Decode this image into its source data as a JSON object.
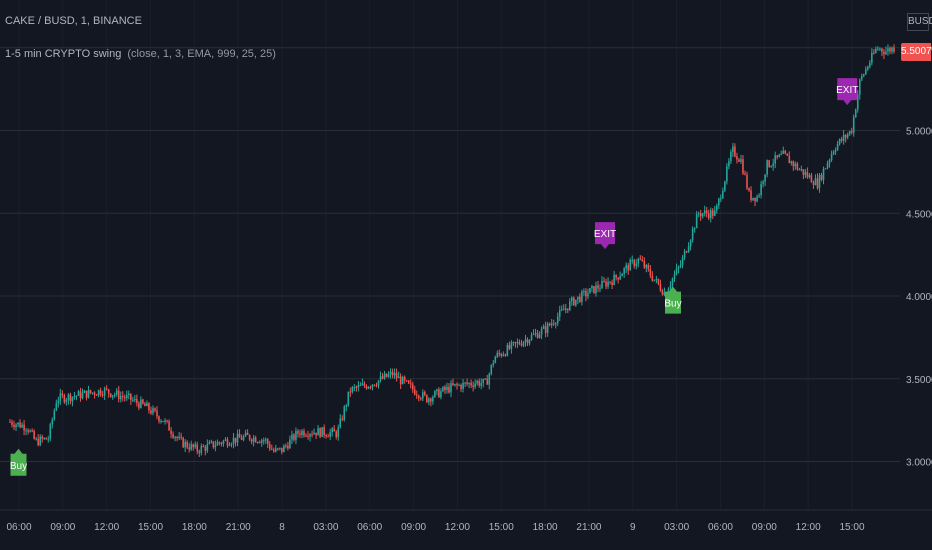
{
  "header": {
    "symbol": "CAKE / BUSD, 1, BINANCE",
    "indicator": "1-5 min CRYPTO swing",
    "indicator_params": "(close, 1, 3, EMA, 999, 25, 25)"
  },
  "currency": "BUSD",
  "last_price": "5.5007",
  "colors": {
    "background": "#131722",
    "grid": "#2a2e39",
    "up": "#26a69a",
    "down": "#ef5350",
    "axis_text": "#b2b5be",
    "buy": "#4caf50",
    "exit": "#9c27b0",
    "badge": "#f05350"
  },
  "chart_data": {
    "type": "candlestick",
    "title": "CAKE / BUSD, 1, BINANCE",
    "ylim": [
      2.75,
      5.75
    ],
    "y_ticks": [
      "3.0000",
      "3.5000",
      "4.0000",
      "4.5000",
      "5.0000",
      "5.5000"
    ],
    "x_ticks": [
      "06:00",
      "09:00",
      "12:00",
      "15:00",
      "18:00",
      "21:00",
      "8",
      "03:00",
      "06:00",
      "09:00",
      "12:00",
      "15:00",
      "18:00",
      "21:00",
      "9",
      "03:00",
      "06:00",
      "09:00",
      "12:00",
      "15:00"
    ],
    "price_path": [
      [
        0,
        3.24
      ],
      [
        0.02,
        3.21
      ],
      [
        0.03,
        3.12
      ],
      [
        0.045,
        3.14
      ],
      [
        0.055,
        3.38
      ],
      [
        0.08,
        3.4
      ],
      [
        0.11,
        3.43
      ],
      [
        0.14,
        3.38
      ],
      [
        0.16,
        3.33
      ],
      [
        0.18,
        3.25
      ],
      [
        0.2,
        3.12
      ],
      [
        0.22,
        3.07
      ],
      [
        0.25,
        3.12
      ],
      [
        0.28,
        3.15
      ],
      [
        0.3,
        3.13
      ],
      [
        0.31,
        3.06
      ],
      [
        0.32,
        3.07
      ],
      [
        0.34,
        3.18
      ],
      [
        0.36,
        3.18
      ],
      [
        0.385,
        3.17
      ],
      [
        0.4,
        3.43
      ],
      [
        0.43,
        3.48
      ],
      [
        0.45,
        3.53
      ],
      [
        0.47,
        3.45
      ],
      [
        0.49,
        3.38
      ],
      [
        0.52,
        3.45
      ],
      [
        0.55,
        3.48
      ],
      [
        0.56,
        3.47
      ],
      [
        0.57,
        3.63
      ],
      [
        0.6,
        3.72
      ],
      [
        0.63,
        3.8
      ],
      [
        0.66,
        3.96
      ],
      [
        0.69,
        4.05
      ],
      [
        0.71,
        4.1
      ],
      [
        0.73,
        4.19
      ],
      [
        0.74,
        4.22
      ],
      [
        0.755,
        4.12
      ],
      [
        0.77,
        4.02
      ],
      [
        0.79,
        4.2
      ],
      [
        0.81,
        4.5
      ],
      [
        0.83,
        4.5
      ],
      [
        0.85,
        4.88
      ],
      [
        0.86,
        4.82
      ],
      [
        0.87,
        4.6
      ],
      [
        0.88,
        4.6
      ],
      [
        0.89,
        4.79
      ],
      [
        0.91,
        4.85
      ],
      [
        0.93,
        4.76
      ],
      [
        0.95,
        4.68
      ],
      [
        0.97,
        4.9
      ],
      [
        0.99,
        5.0
      ],
      [
        1.0,
        5.3
      ],
      [
        1.02,
        5.5
      ],
      [
        1.03,
        5.48
      ],
      [
        1.04,
        5.5
      ]
    ],
    "signals": [
      {
        "label": "Buy",
        "type": "buy",
        "x": 0.01,
        "price": 2.98
      },
      {
        "label": "EXIT",
        "type": "exit",
        "x": 0.7,
        "price": 4.38
      },
      {
        "label": "Buy",
        "type": "buy",
        "x": 0.78,
        "price": 3.96
      },
      {
        "label": "EXIT",
        "type": "exit",
        "x": 0.985,
        "price": 5.25
      }
    ]
  }
}
